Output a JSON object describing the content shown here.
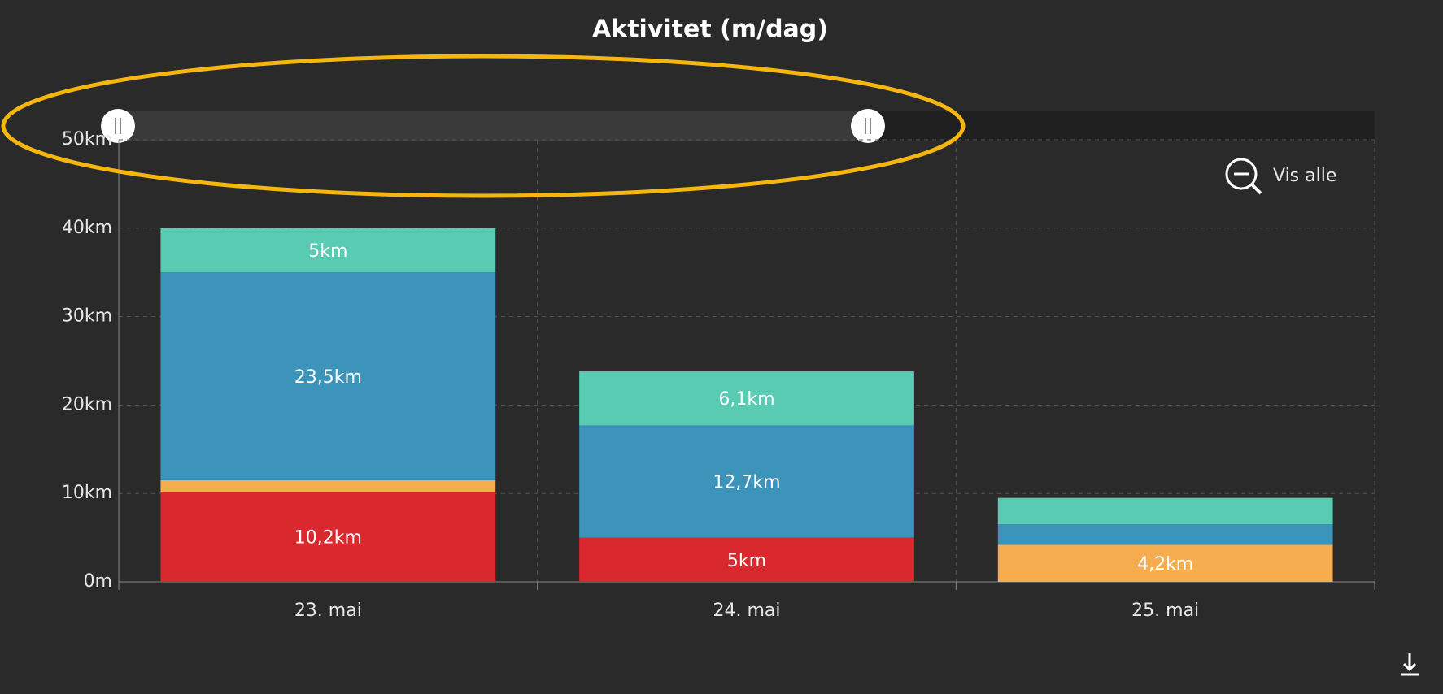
{
  "chart_data": {
    "type": "stacked_bar",
    "title": "Aktivitet (m/dag)",
    "categories": [
      "23. mai",
      "24. mai",
      "25. mai"
    ],
    "series": [
      {
        "color": "#d9292e",
        "values": [
          10.2,
          5,
          0
        ],
        "value_labels": [
          "10,2km",
          "5km",
          null
        ]
      },
      {
        "color": "#f5ad4f",
        "values": [
          1.3,
          0,
          4.2
        ],
        "value_labels": [
          null,
          null,
          "4,2km"
        ]
      },
      {
        "color": "#3c94bb",
        "values": [
          23.5,
          12.7,
          2.3
        ],
        "value_labels": [
          "23,5km",
          "12,7km",
          null
        ]
      },
      {
        "color": "#59cbb3",
        "values": [
          5,
          6.1,
          3.0
        ],
        "value_labels": [
          "5km",
          "6,1km",
          null
        ]
      }
    ],
    "ylim": [
      0,
      50
    ],
    "yticks": [
      {
        "value": 0,
        "label": "0m"
      },
      {
        "value": 10,
        "label": "10km"
      },
      {
        "value": 20,
        "label": "20km"
      },
      {
        "value": 30,
        "label": "30km"
      },
      {
        "value": 40,
        "label": "40km"
      },
      {
        "value": 50,
        "label": "50km"
      }
    ],
    "grid": true,
    "zoom_button": "Vis alle"
  }
}
